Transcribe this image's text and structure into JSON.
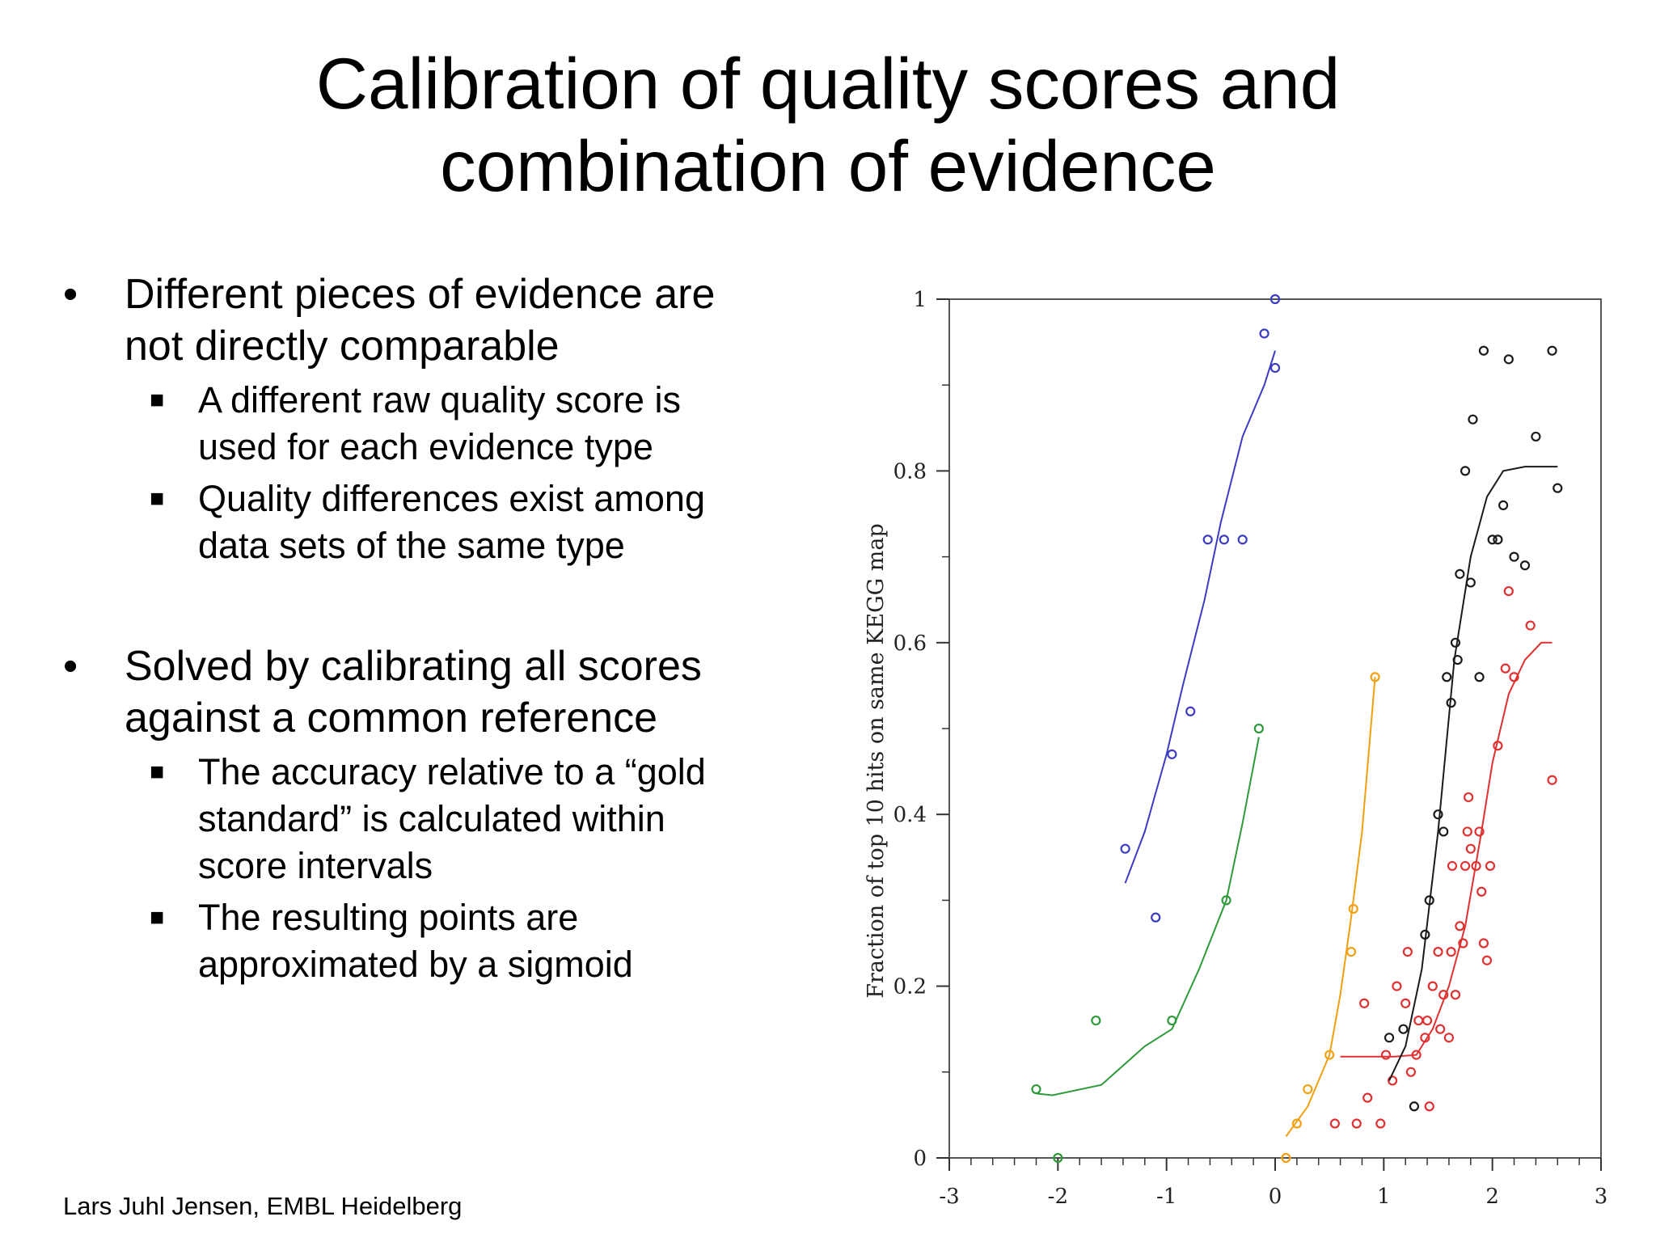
{
  "slide": {
    "title_lines": [
      "Calibration of quality scores and",
      "combination of evidence"
    ],
    "bullets": [
      {
        "text": [
          "Different pieces of evidence are",
          "not directly comparable"
        ],
        "subs": [
          [
            "A different raw quality score is",
            "used for each evidence type"
          ],
          [
            "Quality differences exist among",
            "data sets of the same type"
          ]
        ]
      },
      {
        "text": [
          "Solved by calibrating all scores",
          "against a common reference"
        ],
        "subs": [
          [
            "The accuracy relative to a “gold",
            "standard” is calculated within",
            "score intervals"
          ],
          [
            "The resulting points are",
            "approximated by a sigmoid"
          ]
        ]
      }
    ],
    "footer": "Lars Juhl Jensen, EMBL Heidelberg"
  },
  "chart_data": {
    "type": "scatter",
    "title": "",
    "xlabel": "",
    "ylabel": "Fraction of top 10 hits on same KEGG map",
    "xlim": [
      -3,
      3
    ],
    "ylim": [
      0,
      1
    ],
    "xticks": [
      -3,
      -2,
      -1,
      0,
      1,
      2,
      3
    ],
    "yticks": [
      0,
      0.2,
      0.4,
      0.6,
      0.8,
      1
    ],
    "xtick_labels": [
      "-3",
      "-2",
      "-1",
      "0",
      "1",
      "2",
      "3"
    ],
    "ytick_labels": [
      "0",
      "0.2",
      "0.4",
      "0.6",
      "0.8",
      "1"
    ],
    "series": [
      {
        "color": "#3b3bc4",
        "points": [
          [
            -1.38,
            0.36
          ],
          [
            -1.1,
            0.28
          ],
          [
            -0.95,
            0.47
          ],
          [
            -0.78,
            0.52
          ],
          [
            -0.62,
            0.72
          ],
          [
            -0.47,
            0.72
          ],
          [
            -0.3,
            0.72
          ],
          [
            -0.1,
            0.96
          ],
          [
            0.0,
            1.0
          ],
          [
            0.0,
            0.92
          ]
        ],
        "curve": [
          [
            -1.38,
            0.32
          ],
          [
            -1.2,
            0.38
          ],
          [
            -1.0,
            0.47
          ],
          [
            -0.85,
            0.55
          ],
          [
            -0.65,
            0.65
          ],
          [
            -0.5,
            0.74
          ],
          [
            -0.3,
            0.84
          ],
          [
            -0.1,
            0.9
          ],
          [
            0.0,
            0.94
          ]
        ]
      },
      {
        "color": "#2e9a3a",
        "points": [
          [
            -2.2,
            0.08
          ],
          [
            -2.0,
            0.0
          ],
          [
            -1.65,
            0.16
          ],
          [
            -0.95,
            0.16
          ],
          [
            -0.45,
            0.3
          ],
          [
            -0.15,
            0.5
          ]
        ],
        "curve": [
          [
            -2.2,
            0.075
          ],
          [
            -2.05,
            0.073
          ],
          [
            -1.6,
            0.085
          ],
          [
            -1.2,
            0.13
          ],
          [
            -0.95,
            0.15
          ],
          [
            -0.7,
            0.22
          ],
          [
            -0.45,
            0.3
          ],
          [
            -0.3,
            0.39
          ],
          [
            -0.15,
            0.49
          ]
        ]
      },
      {
        "color": "#f0a010",
        "points": [
          [
            0.1,
            0.0
          ],
          [
            0.2,
            0.04
          ],
          [
            0.3,
            0.08
          ],
          [
            0.5,
            0.12
          ],
          [
            0.7,
            0.24
          ],
          [
            0.72,
            0.29
          ],
          [
            0.92,
            0.56
          ]
        ],
        "curve": [
          [
            0.1,
            0.025
          ],
          [
            0.3,
            0.06
          ],
          [
            0.5,
            0.12
          ],
          [
            0.6,
            0.19
          ],
          [
            0.7,
            0.28
          ],
          [
            0.8,
            0.38
          ],
          [
            0.92,
            0.56
          ]
        ]
      },
      {
        "color": "#e03030",
        "points": [
          [
            0.55,
            0.04
          ],
          [
            0.75,
            0.04
          ],
          [
            0.85,
            0.07
          ],
          [
            0.82,
            0.18
          ],
          [
            0.97,
            0.04
          ],
          [
            1.02,
            0.12
          ],
          [
            1.08,
            0.09
          ],
          [
            1.12,
            0.2
          ],
          [
            1.2,
            0.18
          ],
          [
            1.22,
            0.24
          ],
          [
            1.25,
            0.1
          ],
          [
            1.3,
            0.12
          ],
          [
            1.32,
            0.16
          ],
          [
            1.38,
            0.14
          ],
          [
            1.4,
            0.16
          ],
          [
            1.42,
            0.06
          ],
          [
            1.45,
            0.2
          ],
          [
            1.5,
            0.24
          ],
          [
            1.52,
            0.15
          ],
          [
            1.55,
            0.19
          ],
          [
            1.6,
            0.14
          ],
          [
            1.62,
            0.24
          ],
          [
            1.63,
            0.34
          ],
          [
            1.66,
            0.19
          ],
          [
            1.7,
            0.27
          ],
          [
            1.73,
            0.25
          ],
          [
            1.75,
            0.34
          ],
          [
            1.77,
            0.38
          ],
          [
            1.78,
            0.42
          ],
          [
            1.8,
            0.36
          ],
          [
            1.85,
            0.34
          ],
          [
            1.88,
            0.38
          ],
          [
            1.9,
            0.31
          ],
          [
            1.92,
            0.25
          ],
          [
            1.95,
            0.23
          ],
          [
            1.98,
            0.34
          ],
          [
            2.05,
            0.48
          ],
          [
            2.12,
            0.57
          ],
          [
            2.15,
            0.66
          ],
          [
            2.2,
            0.56
          ],
          [
            2.35,
            0.62
          ],
          [
            2.55,
            0.44
          ]
        ],
        "curve": [
          [
            0.6,
            0.118
          ],
          [
            0.9,
            0.118
          ],
          [
            1.1,
            0.118
          ],
          [
            1.3,
            0.12
          ],
          [
            1.45,
            0.15
          ],
          [
            1.6,
            0.2
          ],
          [
            1.75,
            0.27
          ],
          [
            1.9,
            0.38
          ],
          [
            2.0,
            0.46
          ],
          [
            2.15,
            0.54
          ],
          [
            2.3,
            0.58
          ],
          [
            2.45,
            0.6
          ],
          [
            2.55,
            0.6
          ]
        ]
      },
      {
        "color": "#1a1a1a",
        "points": [
          [
            1.05,
            0.14
          ],
          [
            1.18,
            0.15
          ],
          [
            1.28,
            0.06
          ],
          [
            1.38,
            0.26
          ],
          [
            1.42,
            0.3
          ],
          [
            1.5,
            0.4
          ],
          [
            1.55,
            0.38
          ],
          [
            1.58,
            0.56
          ],
          [
            1.62,
            0.53
          ],
          [
            1.66,
            0.6
          ],
          [
            1.68,
            0.58
          ],
          [
            1.7,
            0.68
          ],
          [
            1.75,
            0.8
          ],
          [
            1.8,
            0.67
          ],
          [
            1.82,
            0.86
          ],
          [
            1.88,
            0.56
          ],
          [
            1.92,
            0.94
          ],
          [
            2.0,
            0.72
          ],
          [
            2.05,
            0.72
          ],
          [
            2.1,
            0.76
          ],
          [
            2.15,
            0.93
          ],
          [
            2.2,
            0.7
          ],
          [
            2.3,
            0.69
          ],
          [
            2.4,
            0.84
          ],
          [
            2.55,
            0.94
          ],
          [
            2.6,
            0.78
          ]
        ],
        "curve": [
          [
            1.05,
            0.09
          ],
          [
            1.2,
            0.13
          ],
          [
            1.35,
            0.22
          ],
          [
            1.5,
            0.38
          ],
          [
            1.65,
            0.58
          ],
          [
            1.8,
            0.7
          ],
          [
            1.95,
            0.77
          ],
          [
            2.1,
            0.8
          ],
          [
            2.3,
            0.805
          ],
          [
            2.6,
            0.805
          ]
        ]
      }
    ]
  }
}
